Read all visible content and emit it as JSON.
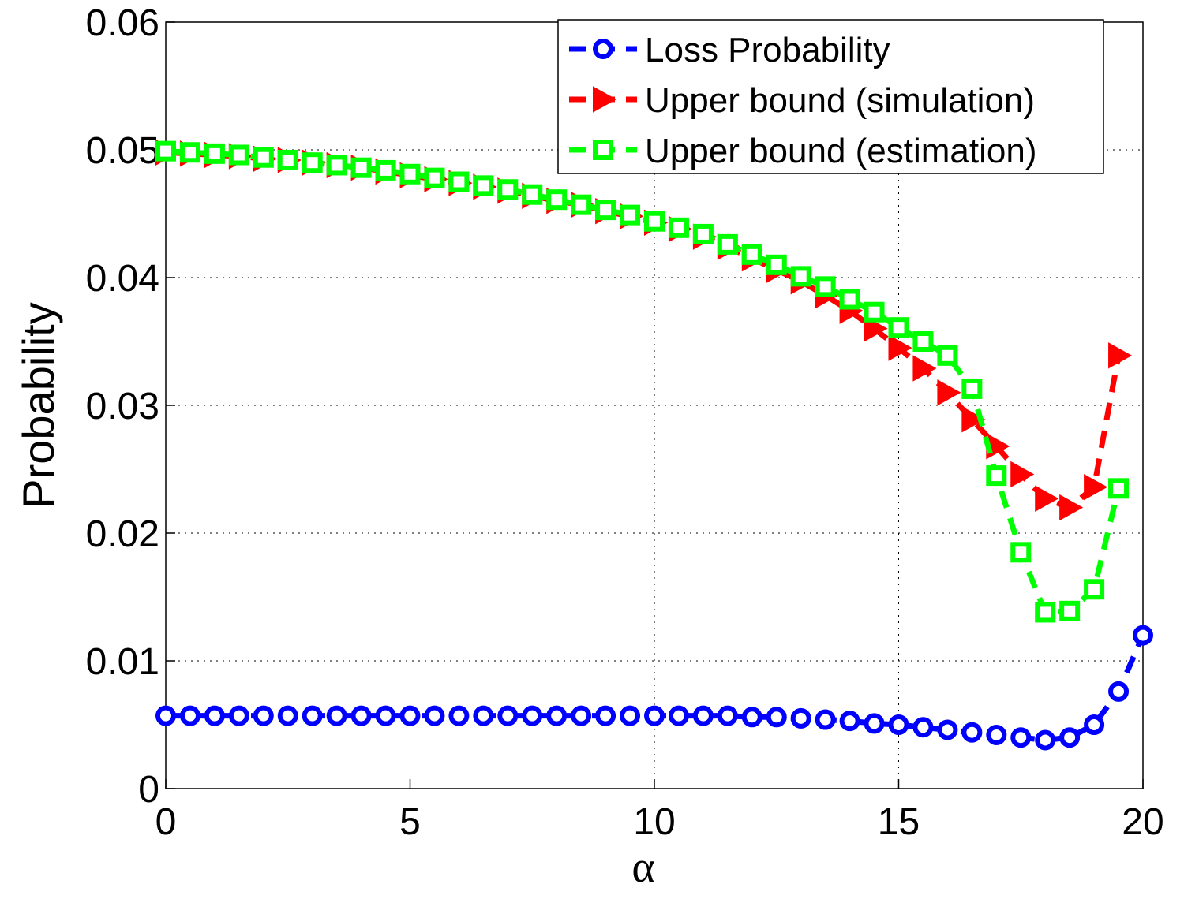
{
  "chart_data": {
    "type": "line",
    "xlabel": "α",
    "ylabel": "Probability",
    "x": [
      0,
      0.5,
      1,
      1.5,
      2,
      2.5,
      3,
      3.5,
      4,
      4.5,
      5,
      5.5,
      6,
      6.5,
      7,
      7.5,
      8,
      8.5,
      9,
      9.5,
      10,
      10.5,
      11,
      11.5,
      12,
      12.5,
      13,
      13.5,
      14,
      14.5,
      15,
      15.5,
      16,
      16.5,
      17,
      17.5,
      18,
      18.5,
      19,
      19.5,
      20
    ],
    "series": [
      {
        "name": "Loss Probability",
        "color": "#0000ff",
        "marker": "circle",
        "values": [
          0.0057,
          0.0057,
          0.0057,
          0.0057,
          0.0057,
          0.0057,
          0.0057,
          0.0057,
          0.0057,
          0.0057,
          0.0057,
          0.0057,
          0.0057,
          0.0057,
          0.0057,
          0.0057,
          0.0057,
          0.0057,
          0.0057,
          0.0057,
          0.0057,
          0.0057,
          0.0057,
          0.0057,
          0.0056,
          0.0056,
          0.0055,
          0.0054,
          0.0053,
          0.0051,
          0.005,
          0.0048,
          0.0046,
          0.0044,
          0.0042,
          0.004,
          0.0038,
          0.004,
          0.005,
          0.0076,
          0.012
        ]
      },
      {
        "name": "Upper bound (simulation)",
        "color": "#ff0000",
        "marker": "triangle-right",
        "values": [
          0.0498,
          0.0497,
          0.0496,
          0.0495,
          0.0493,
          0.0492,
          0.049,
          0.0488,
          0.0486,
          0.0483,
          0.048,
          0.0477,
          0.0474,
          0.0471,
          0.0468,
          0.0464,
          0.046,
          0.0457,
          0.0452,
          0.0448,
          0.0443,
          0.0438,
          0.0432,
          0.0424,
          0.0415,
          0.0406,
          0.0397,
          0.0386,
          0.0374,
          0.036,
          0.0345,
          0.0329,
          0.031,
          0.0289,
          0.0268,
          0.0246,
          0.0227,
          0.022,
          0.0236,
          0.0339,
          null
        ]
      },
      {
        "name": "Upper bound (estimation)",
        "color": "#00ff00",
        "marker": "square",
        "values": [
          0.0499,
          0.0498,
          0.0497,
          0.0496,
          0.0494,
          0.0492,
          0.049,
          0.0488,
          0.0486,
          0.0484,
          0.0481,
          0.0478,
          0.0475,
          0.0472,
          0.0469,
          0.0465,
          0.0461,
          0.0457,
          0.0453,
          0.0449,
          0.0444,
          0.0439,
          0.0434,
          0.0426,
          0.0418,
          0.041,
          0.0401,
          0.0393,
          0.0383,
          0.0373,
          0.0361,
          0.035,
          0.0339,
          0.0313,
          0.0245,
          0.0185,
          0.0138,
          0.0139,
          0.0156,
          0.0235,
          null
        ]
      }
    ],
    "xlim": [
      0,
      20
    ],
    "xticks": [
      0,
      5,
      10,
      15,
      20
    ],
    "ylim": [
      0,
      0.06
    ],
    "yticks": [
      0,
      0.01,
      0.02,
      0.03,
      0.04,
      0.05,
      0.06
    ],
    "grid": true,
    "legend": "upper right"
  }
}
